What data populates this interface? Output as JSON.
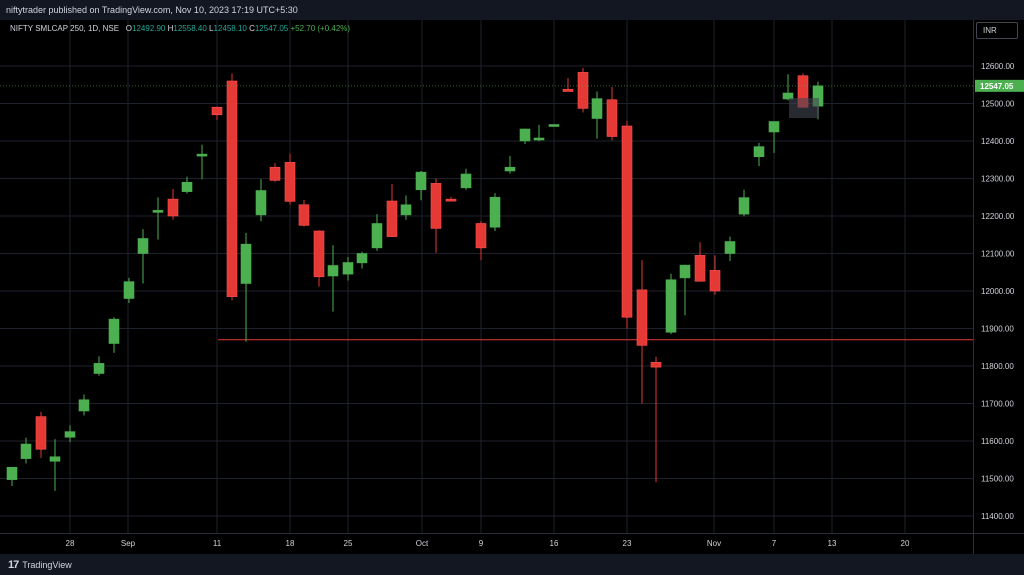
{
  "header": {
    "publisher_text": "niftytrader published on TradingView.com, Nov 10, 2023 17:19 UTC+5:30"
  },
  "legend": {
    "symbol": "NIFTY SMLCAP 250, 1D, NSE",
    "o_label": "O",
    "o_value": "12492.90",
    "h_label": "H",
    "h_value": "12558.40",
    "l_label": "L",
    "l_value": "12458.10",
    "c_label": "C",
    "c_value": "12547.05",
    "change": "+52.70 (+0.42%)"
  },
  "currency_button": "INR",
  "last_price_label": "12547.05",
  "footer": {
    "brand": "TradingView",
    "logo_glyph": "17"
  },
  "colors": {
    "up": "#4caf50",
    "down": "#e53935",
    "grid": "#1e222d",
    "axis_text": "#d1d4dc",
    "support_line": "#e53935",
    "last_price_bg": "#4caf50"
  },
  "chart_data": {
    "type": "candlestick",
    "y_ticks": [
      11400,
      11500,
      11600,
      11700,
      11800,
      11900,
      12000,
      12100,
      12200,
      12300,
      12400,
      12500,
      12600
    ],
    "y_tick_labels": [
      "11400.00",
      "11500.00",
      "11600.00",
      "11700.00",
      "11800.00",
      "11900.00",
      "12000.00",
      "12100.00",
      "12200.00",
      "12300.00",
      "12400.00",
      "12500.00",
      "12600.00"
    ],
    "x_tick_labels": [
      "28",
      "Sep",
      "11",
      "18",
      "25",
      "Oct",
      "9",
      "16",
      "23",
      "Nov",
      "7",
      "13",
      "20"
    ],
    "support_level": 11870,
    "last_price": 12547.05,
    "candles": [
      {
        "o": 11497,
        "h": 11523,
        "l": 11480,
        "c": 11530
      },
      {
        "o": 11553,
        "h": 11609,
        "l": 11540,
        "c": 11592
      },
      {
        "o": 11665,
        "h": 11678,
        "l": 11555,
        "c": 11578
      },
      {
        "o": 11546,
        "h": 11605,
        "l": 11467,
        "c": 11558
      },
      {
        "o": 11610,
        "h": 11642,
        "l": 11597,
        "c": 11625
      },
      {
        "o": 11680,
        "h": 11724,
        "l": 11668,
        "c": 11710
      },
      {
        "o": 11780,
        "h": 11826,
        "l": 11774,
        "c": 11807
      },
      {
        "o": 11860,
        "h": 11930,
        "l": 11835,
        "c": 11925
      },
      {
        "o": 11980,
        "h": 12035,
        "l": 11968,
        "c": 12025
      },
      {
        "o": 12100,
        "h": 12165,
        "l": 12020,
        "c": 12140
      },
      {
        "o": 12210,
        "h": 12250,
        "l": 12137,
        "c": 12215
      },
      {
        "o": 12245,
        "h": 12272,
        "l": 12190,
        "c": 12200
      },
      {
        "o": 12265,
        "h": 12305,
        "l": 12260,
        "c": 12290
      },
      {
        "o": 12360,
        "h": 12390,
        "l": 12298,
        "c": 12365
      },
      {
        "o": 12490,
        "h": 12492,
        "l": 12456,
        "c": 12470
      },
      {
        "o": 12560,
        "h": 12580,
        "l": 11975,
        "c": 11985
      },
      {
        "o": 12020,
        "h": 12155,
        "l": 11865,
        "c": 12125
      },
      {
        "o": 12203,
        "h": 12298,
        "l": 12186,
        "c": 12268
      },
      {
        "o": 12330,
        "h": 12341,
        "l": 12291,
        "c": 12295
      },
      {
        "o": 12343,
        "h": 12366,
        "l": 12230,
        "c": 12239
      },
      {
        "o": 12230,
        "h": 12243,
        "l": 12172,
        "c": 12175
      },
      {
        "o": 12160,
        "h": 12162,
        "l": 12012,
        "c": 12038
      },
      {
        "o": 12040,
        "h": 12122,
        "l": 11945,
        "c": 12068
      },
      {
        "o": 12045,
        "h": 12091,
        "l": 12028,
        "c": 12076
      },
      {
        "o": 12075,
        "h": 12105,
        "l": 12060,
        "c": 12100
      },
      {
        "o": 12115,
        "h": 12205,
        "l": 12107,
        "c": 12180
      },
      {
        "o": 12240,
        "h": 12285,
        "l": 12145,
        "c": 12145
      },
      {
        "o": 12203,
        "h": 12255,
        "l": 12190,
        "c": 12230
      },
      {
        "o": 12270,
        "h": 12320,
        "l": 12242,
        "c": 12317
      },
      {
        "o": 12287,
        "h": 12300,
        "l": 12102,
        "c": 12167
      },
      {
        "o": 12245,
        "h": 12251,
        "l": 12240,
        "c": 12240
      },
      {
        "o": 12275,
        "h": 12326,
        "l": 12270,
        "c": 12312
      },
      {
        "o": 12180,
        "h": 12187,
        "l": 12082,
        "c": 12115
      },
      {
        "o": 12170,
        "h": 12261,
        "l": 12160,
        "c": 12250
      },
      {
        "o": 12320,
        "h": 12360,
        "l": 12313,
        "c": 12330
      },
      {
        "o": 12400,
        "h": 12433,
        "l": 12392,
        "c": 12432
      },
      {
        "o": 12403,
        "h": 12443,
        "l": 12400,
        "c": 12408
      },
      {
        "o": 12444,
        "h": 12444,
        "l": 12444,
        "c": 12444
      },
      {
        "o": 12538,
        "h": 12568,
        "l": 12535,
        "c": 12532
      },
      {
        "o": 12583,
        "h": 12595,
        "l": 12476,
        "c": 12487
      },
      {
        "o": 12460,
        "h": 12532,
        "l": 12406,
        "c": 12513
      },
      {
        "o": 12510,
        "h": 12544,
        "l": 12402,
        "c": 12412
      },
      {
        "o": 12440,
        "h": 12454,
        "l": 11900,
        "c": 11930
      },
      {
        "o": 12003,
        "h": 12082,
        "l": 11700,
        "c": 11855
      },
      {
        "o": 11810,
        "h": 11825,
        "l": 11490,
        "c": 11797
      },
      {
        "o": 11890,
        "h": 12046,
        "l": 11885,
        "c": 12030
      },
      {
        "o": 12035,
        "h": 12070,
        "l": 11935,
        "c": 12069
      },
      {
        "o": 12095,
        "h": 12130,
        "l": 12028,
        "c": 12026
      },
      {
        "o": 12055,
        "h": 12095,
        "l": 11990,
        "c": 12000
      },
      {
        "o": 12100,
        "h": 12145,
        "l": 12080,
        "c": 12132
      },
      {
        "o": 12205,
        "h": 12270,
        "l": 12199,
        "c": 12249
      },
      {
        "o": 12358,
        "h": 12395,
        "l": 12333,
        "c": 12385
      },
      {
        "o": 12424,
        "h": 12451,
        "l": 12368,
        "c": 12452
      },
      {
        "o": 12512,
        "h": 12578,
        "l": 12508,
        "c": 12528
      },
      {
        "o": 12574,
        "h": 12580,
        "l": 12496,
        "c": 12490
      },
      {
        "o": 12492.9,
        "h": 12558.4,
        "l": 12458.1,
        "c": 12547.05
      }
    ]
  }
}
